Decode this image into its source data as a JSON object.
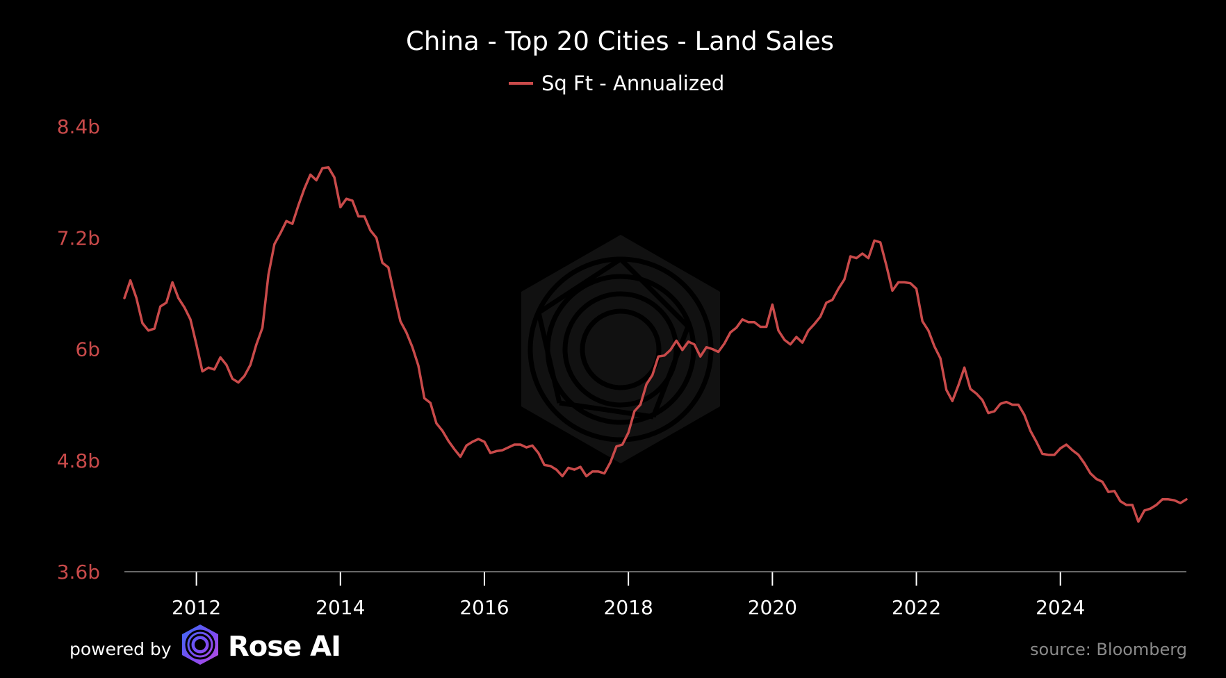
{
  "chart_data": {
    "type": "line",
    "title": "China - Top 20 Cities - Land Sales",
    "series": [
      {
        "name": "Sq Ft - Annualized",
        "color": "#c94a4a",
        "values": [
          [
            "2011-01",
            6.55
          ],
          [
            "2011-02",
            6.74
          ],
          [
            "2011-03",
            6.55
          ],
          [
            "2011-04",
            6.28
          ],
          [
            "2011-05",
            6.2
          ],
          [
            "2011-06",
            6.22
          ],
          [
            "2011-07",
            6.46
          ],
          [
            "2011-08",
            6.5
          ],
          [
            "2011-09",
            6.72
          ],
          [
            "2011-10",
            6.55
          ],
          [
            "2011-11",
            6.45
          ],
          [
            "2011-12",
            6.32
          ],
          [
            "2012-01",
            6.05
          ],
          [
            "2012-02",
            5.76
          ],
          [
            "2012-03",
            5.8
          ],
          [
            "2012-04",
            5.78
          ],
          [
            "2012-05",
            5.91
          ],
          [
            "2012-06",
            5.83
          ],
          [
            "2012-07",
            5.68
          ],
          [
            "2012-08",
            5.64
          ],
          [
            "2012-09",
            5.71
          ],
          [
            "2012-10",
            5.83
          ],
          [
            "2012-11",
            6.05
          ],
          [
            "2012-12",
            6.23
          ],
          [
            "2013-01",
            6.8
          ],
          [
            "2013-02",
            7.13
          ],
          [
            "2013-03",
            7.25
          ],
          [
            "2013-04",
            7.38
          ],
          [
            "2013-05",
            7.35
          ],
          [
            "2013-06",
            7.55
          ],
          [
            "2013-07",
            7.73
          ],
          [
            "2013-08",
            7.88
          ],
          [
            "2013-09",
            7.82
          ],
          [
            "2013-10",
            7.95
          ],
          [
            "2013-11",
            7.96
          ],
          [
            "2013-12",
            7.85
          ],
          [
            "2014-01",
            7.53
          ],
          [
            "2014-02",
            7.62
          ],
          [
            "2014-03",
            7.6
          ],
          [
            "2014-04",
            7.43
          ],
          [
            "2014-05",
            7.43
          ],
          [
            "2014-06",
            7.28
          ],
          [
            "2014-07",
            7.2
          ],
          [
            "2014-08",
            6.93
          ],
          [
            "2014-09",
            6.88
          ],
          [
            "2014-10",
            6.58
          ],
          [
            "2014-11",
            6.3
          ],
          [
            "2014-12",
            6.18
          ],
          [
            "2015-01",
            6.02
          ],
          [
            "2015-02",
            5.82
          ],
          [
            "2015-03",
            5.47
          ],
          [
            "2015-04",
            5.42
          ],
          [
            "2015-05",
            5.2
          ],
          [
            "2015-06",
            5.12
          ],
          [
            "2015-07",
            5.01
          ],
          [
            "2015-08",
            4.92
          ],
          [
            "2015-09",
            4.84
          ],
          [
            "2015-10",
            4.96
          ],
          [
            "2015-11",
            5.0
          ],
          [
            "2015-12",
            5.03
          ],
          [
            "2016-01",
            5.0
          ],
          [
            "2016-02",
            4.88
          ],
          [
            "2016-03",
            4.9
          ],
          [
            "2016-04",
            4.91
          ],
          [
            "2016-05",
            4.94
          ],
          [
            "2016-06",
            4.97
          ],
          [
            "2016-07",
            4.97
          ],
          [
            "2016-08",
            4.94
          ],
          [
            "2016-09",
            4.96
          ],
          [
            "2016-10",
            4.88
          ],
          [
            "2016-11",
            4.75
          ],
          [
            "2016-12",
            4.74
          ],
          [
            "2017-01",
            4.7
          ],
          [
            "2017-02",
            4.63
          ],
          [
            "2017-03",
            4.72
          ],
          [
            "2017-04",
            4.7
          ],
          [
            "2017-05",
            4.73
          ],
          [
            "2017-06",
            4.63
          ],
          [
            "2017-07",
            4.68
          ],
          [
            "2017-08",
            4.68
          ],
          [
            "2017-09",
            4.66
          ],
          [
            "2017-10",
            4.78
          ],
          [
            "2017-11",
            4.95
          ],
          [
            "2017-12",
            4.97
          ],
          [
            "2018-01",
            5.1
          ],
          [
            "2018-02",
            5.33
          ],
          [
            "2018-03",
            5.4
          ],
          [
            "2018-04",
            5.62
          ],
          [
            "2018-05",
            5.72
          ],
          [
            "2018-06",
            5.92
          ],
          [
            "2018-07",
            5.93
          ],
          [
            "2018-08",
            5.99
          ],
          [
            "2018-09",
            6.09
          ],
          [
            "2018-10",
            5.99
          ],
          [
            "2018-11",
            6.08
          ],
          [
            "2018-12",
            6.05
          ],
          [
            "2019-01",
            5.92
          ],
          [
            "2019-02",
            6.02
          ],
          [
            "2019-03",
            6.0
          ],
          [
            "2019-04",
            5.97
          ],
          [
            "2019-05",
            6.06
          ],
          [
            "2019-06",
            6.18
          ],
          [
            "2019-07",
            6.23
          ],
          [
            "2019-08",
            6.32
          ],
          [
            "2019-09",
            6.29
          ],
          [
            "2019-10",
            6.29
          ],
          [
            "2019-11",
            6.24
          ],
          [
            "2019-12",
            6.24
          ],
          [
            "2020-01",
            6.48
          ],
          [
            "2020-02",
            6.2
          ],
          [
            "2020-03",
            6.1
          ],
          [
            "2020-04",
            6.05
          ],
          [
            "2020-05",
            6.13
          ],
          [
            "2020-06",
            6.07
          ],
          [
            "2020-07",
            6.2
          ],
          [
            "2020-08",
            6.27
          ],
          [
            "2020-09",
            6.35
          ],
          [
            "2020-10",
            6.5
          ],
          [
            "2020-11",
            6.53
          ],
          [
            "2020-12",
            6.65
          ],
          [
            "2021-01",
            6.75
          ],
          [
            "2021-02",
            7.0
          ],
          [
            "2021-03",
            6.98
          ],
          [
            "2021-04",
            7.03
          ],
          [
            "2021-05",
            6.98
          ],
          [
            "2021-06",
            7.17
          ],
          [
            "2021-07",
            7.15
          ],
          [
            "2021-08",
            6.9
          ],
          [
            "2021-09",
            6.63
          ],
          [
            "2021-10",
            6.72
          ],
          [
            "2021-11",
            6.72
          ],
          [
            "2021-12",
            6.71
          ],
          [
            "2022-01",
            6.65
          ],
          [
            "2022-02",
            6.3
          ],
          [
            "2022-03",
            6.2
          ],
          [
            "2022-04",
            6.03
          ],
          [
            "2022-05",
            5.9
          ],
          [
            "2022-06",
            5.56
          ],
          [
            "2022-07",
            5.44
          ],
          [
            "2022-08",
            5.61
          ],
          [
            "2022-09",
            5.8
          ],
          [
            "2022-10",
            5.57
          ],
          [
            "2022-11",
            5.52
          ],
          [
            "2022-12",
            5.45
          ],
          [
            "2023-01",
            5.31
          ],
          [
            "2023-02",
            5.33
          ],
          [
            "2023-03",
            5.41
          ],
          [
            "2023-04",
            5.43
          ],
          [
            "2023-05",
            5.4
          ],
          [
            "2023-06",
            5.4
          ],
          [
            "2023-07",
            5.29
          ],
          [
            "2023-08",
            5.12
          ],
          [
            "2023-09",
            5.0
          ],
          [
            "2023-10",
            4.87
          ],
          [
            "2023-11",
            4.86
          ],
          [
            "2023-12",
            4.86
          ],
          [
            "2024-01",
            4.93
          ],
          [
            "2024-02",
            4.97
          ],
          [
            "2024-03",
            4.91
          ],
          [
            "2024-04",
            4.86
          ],
          [
            "2024-05",
            4.77
          ],
          [
            "2024-06",
            4.66
          ],
          [
            "2024-07",
            4.6
          ],
          [
            "2024-08",
            4.57
          ],
          [
            "2024-09",
            4.46
          ],
          [
            "2024-10",
            4.47
          ],
          [
            "2024-11",
            4.36
          ],
          [
            "2024-12",
            4.32
          ],
          [
            "2025-01",
            4.32
          ],
          [
            "2025-02",
            4.14
          ],
          [
            "2025-03",
            4.26
          ],
          [
            "2025-04",
            4.28
          ],
          [
            "2025-05",
            4.32
          ],
          [
            "2025-06",
            4.38
          ],
          [
            "2025-07",
            4.38
          ],
          [
            "2025-08",
            4.37
          ],
          [
            "2025-09",
            4.34
          ],
          [
            "2025-10",
            4.38
          ]
        ]
      }
    ],
    "ylim": [
      3.6,
      8.4
    ],
    "yticks": [
      "8.4b",
      "7.2b",
      "6b",
      "4.8b",
      "3.6b"
    ],
    "ytick_values": [
      8.4,
      7.2,
      6.0,
      4.8,
      3.6
    ],
    "xticks": [
      "2012",
      "2014",
      "2016",
      "2018",
      "2020",
      "2022",
      "2024"
    ],
    "xlim": [
      "2011-01",
      "2025-10"
    ],
    "xlabel": "",
    "ylabel": "",
    "grid": false,
    "legend_position": "top-center",
    "axis_color": "#c94a4a"
  },
  "footer": {
    "powered_by": "powered by",
    "brand": "Rose AI",
    "source": "source: Bloomberg"
  },
  "icons": {
    "logo": "rose-ai-logo-icon",
    "watermark": "rose-ai-watermark-icon"
  }
}
